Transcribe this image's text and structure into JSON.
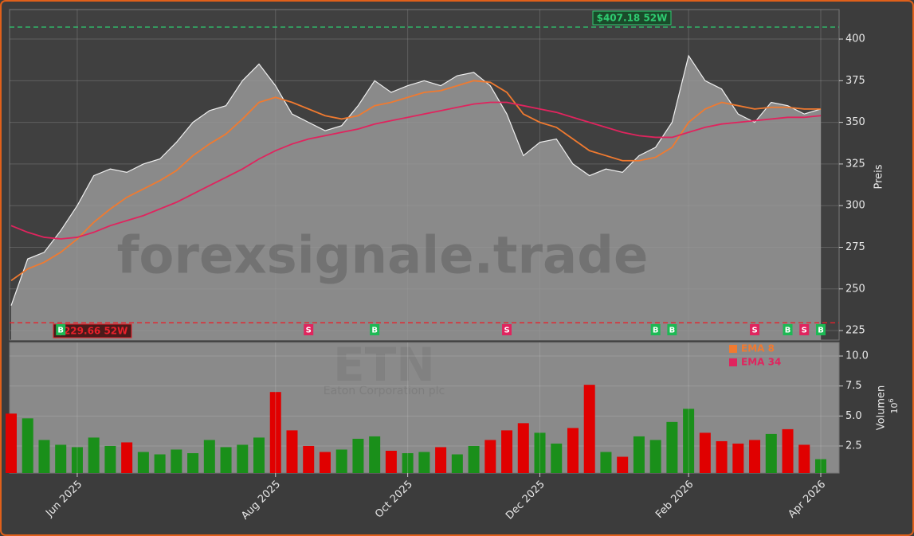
{
  "chart_data": [
    {
      "type": "line",
      "watermark": "forexsignale.trade",
      "ylabel": "Preis",
      "ylim": [
        219.3,
        417.7
      ],
      "yticks": [
        225,
        250,
        275,
        300,
        325,
        350,
        375,
        400
      ],
      "grid": true,
      "color": "#f0f0f0",
      "area_color": "#8a8a8a",
      "values": [
        240,
        268,
        272,
        285,
        300,
        318,
        322,
        320,
        325,
        328,
        338,
        350,
        357,
        360,
        375,
        385,
        372,
        355,
        350,
        345,
        348,
        360,
        375,
        368,
        372,
        375,
        372,
        378,
        380,
        372,
        355,
        330,
        338,
        340,
        325,
        318,
        322,
        320,
        330,
        335,
        350,
        390,
        375,
        370,
        355,
        350,
        362,
        360,
        355,
        358
      ],
      "series": [
        {
          "name": "EMA 8",
          "color": "#f07a30",
          "values": [
            255,
            262,
            266,
            272,
            280,
            290,
            298,
            305,
            310,
            315,
            321,
            330,
            337,
            343,
            352,
            362,
            365,
            362,
            358,
            354,
            352,
            354,
            360,
            362,
            365,
            368,
            369,
            372,
            375,
            374,
            368,
            355,
            350,
            347,
            340,
            333,
            330,
            327,
            327,
            329,
            335,
            350,
            358,
            362,
            360,
            358,
            359,
            359,
            358,
            358
          ]
        },
        {
          "name": "EMA 34",
          "color": "#e0245e",
          "values": [
            288,
            284,
            281,
            280,
            281,
            284,
            288,
            291,
            294,
            298,
            302,
            307,
            312,
            317,
            322,
            328,
            333,
            337,
            340,
            342,
            344,
            346,
            349,
            351,
            353,
            355,
            357,
            359,
            361,
            362,
            362,
            360,
            358,
            356,
            353,
            350,
            347,
            344,
            342,
            341,
            341,
            344,
            347,
            349,
            350,
            351,
            352,
            353,
            353,
            354
          ]
        }
      ],
      "annotations": [
        {
          "text": "$407.18 52W",
          "value": 407.18,
          "color": "#2ecc71"
        },
        {
          "text": "$229.66 52W",
          "value": 229.66,
          "color": "#e8202a"
        }
      ],
      "signals": [
        null,
        null,
        null,
        "B",
        null,
        null,
        null,
        null,
        null,
        null,
        null,
        null,
        null,
        null,
        null,
        null,
        null,
        null,
        "S",
        null,
        null,
        null,
        "B",
        null,
        null,
        null,
        null,
        null,
        null,
        null,
        "S",
        null,
        null,
        null,
        null,
        null,
        null,
        null,
        null,
        "B",
        "B",
        null,
        null,
        null,
        null,
        "S",
        null,
        "B",
        "S",
        "B"
      ],
      "signal_colors": {
        "B": "#1db954",
        "S": "#e0245e"
      }
    },
    {
      "type": "bar",
      "title": "ETN",
      "subtitle": "Eaton Corporation plc",
      "ylabel": "Volumen",
      "scale_base": "10",
      "scale_exponent": "6",
      "ylim": [
        0.24,
        11.13
      ],
      "yticks": [
        2.5,
        {
          "value": 5,
          "label": "5.0"
        },
        7.5,
        {
          "value": 10,
          "label": "10.0"
        }
      ],
      "categories": [
        null,
        null,
        null,
        null,
        "Jun 2025",
        null,
        null,
        null,
        null,
        null,
        null,
        null,
        null,
        null,
        null,
        null,
        "Aug 2025",
        null,
        null,
        null,
        null,
        null,
        null,
        null,
        "Oct 2025",
        null,
        null,
        null,
        null,
        null,
        null,
        null,
        "Dec 2025",
        null,
        null,
        null,
        null,
        null,
        null,
        null,
        null,
        "Feb 2026",
        null,
        null,
        null,
        null,
        null,
        null,
        null,
        "Apr 2026"
      ],
      "values": [
        5.2,
        4.8,
        3.0,
        2.6,
        2.4,
        3.2,
        2.5,
        2.8,
        2.0,
        1.8,
        2.2,
        1.9,
        3.0,
        2.4,
        2.6,
        3.2,
        7.0,
        3.8,
        2.5,
        2.0,
        2.2,
        3.1,
        3.3,
        2.1,
        1.9,
        2.0,
        2.4,
        1.8,
        2.5,
        3.0,
        3.8,
        4.4,
        3.6,
        2.7,
        4.0,
        7.6,
        2.0,
        1.6,
        3.3,
        3.0,
        4.5,
        5.6,
        3.6,
        2.9,
        2.7,
        3.0,
        3.5,
        3.9,
        2.6,
        1.4
      ],
      "colors": [
        "#e00000",
        "#1a8f1a",
        "#1a8f1a",
        "#1a8f1a",
        "#1a8f1a",
        "#1a8f1a",
        "#1a8f1a",
        "#e00000",
        "#1a8f1a",
        "#1a8f1a",
        "#1a8f1a",
        "#1a8f1a",
        "#1a8f1a",
        "#1a8f1a",
        "#1a8f1a",
        "#1a8f1a",
        "#e00000",
        "#e00000",
        "#e00000",
        "#e00000",
        "#1a8f1a",
        "#1a8f1a",
        "#1a8f1a",
        "#e00000",
        "#1a8f1a",
        "#1a8f1a",
        "#e00000",
        "#1a8f1a",
        "#1a8f1a",
        "#e00000",
        "#e00000",
        "#e00000",
        "#1a8f1a",
        "#1a8f1a",
        "#e00000",
        "#e00000",
        "#1a8f1a",
        "#e00000",
        "#1a8f1a",
        "#1a8f1a",
        "#1a8f1a",
        "#1a8f1a",
        "#e00000",
        "#e00000",
        "#e00000",
        "#e00000",
        "#1a8f1a",
        "#e00000",
        "#e00000",
        "#1a8f1a"
      ]
    }
  ]
}
